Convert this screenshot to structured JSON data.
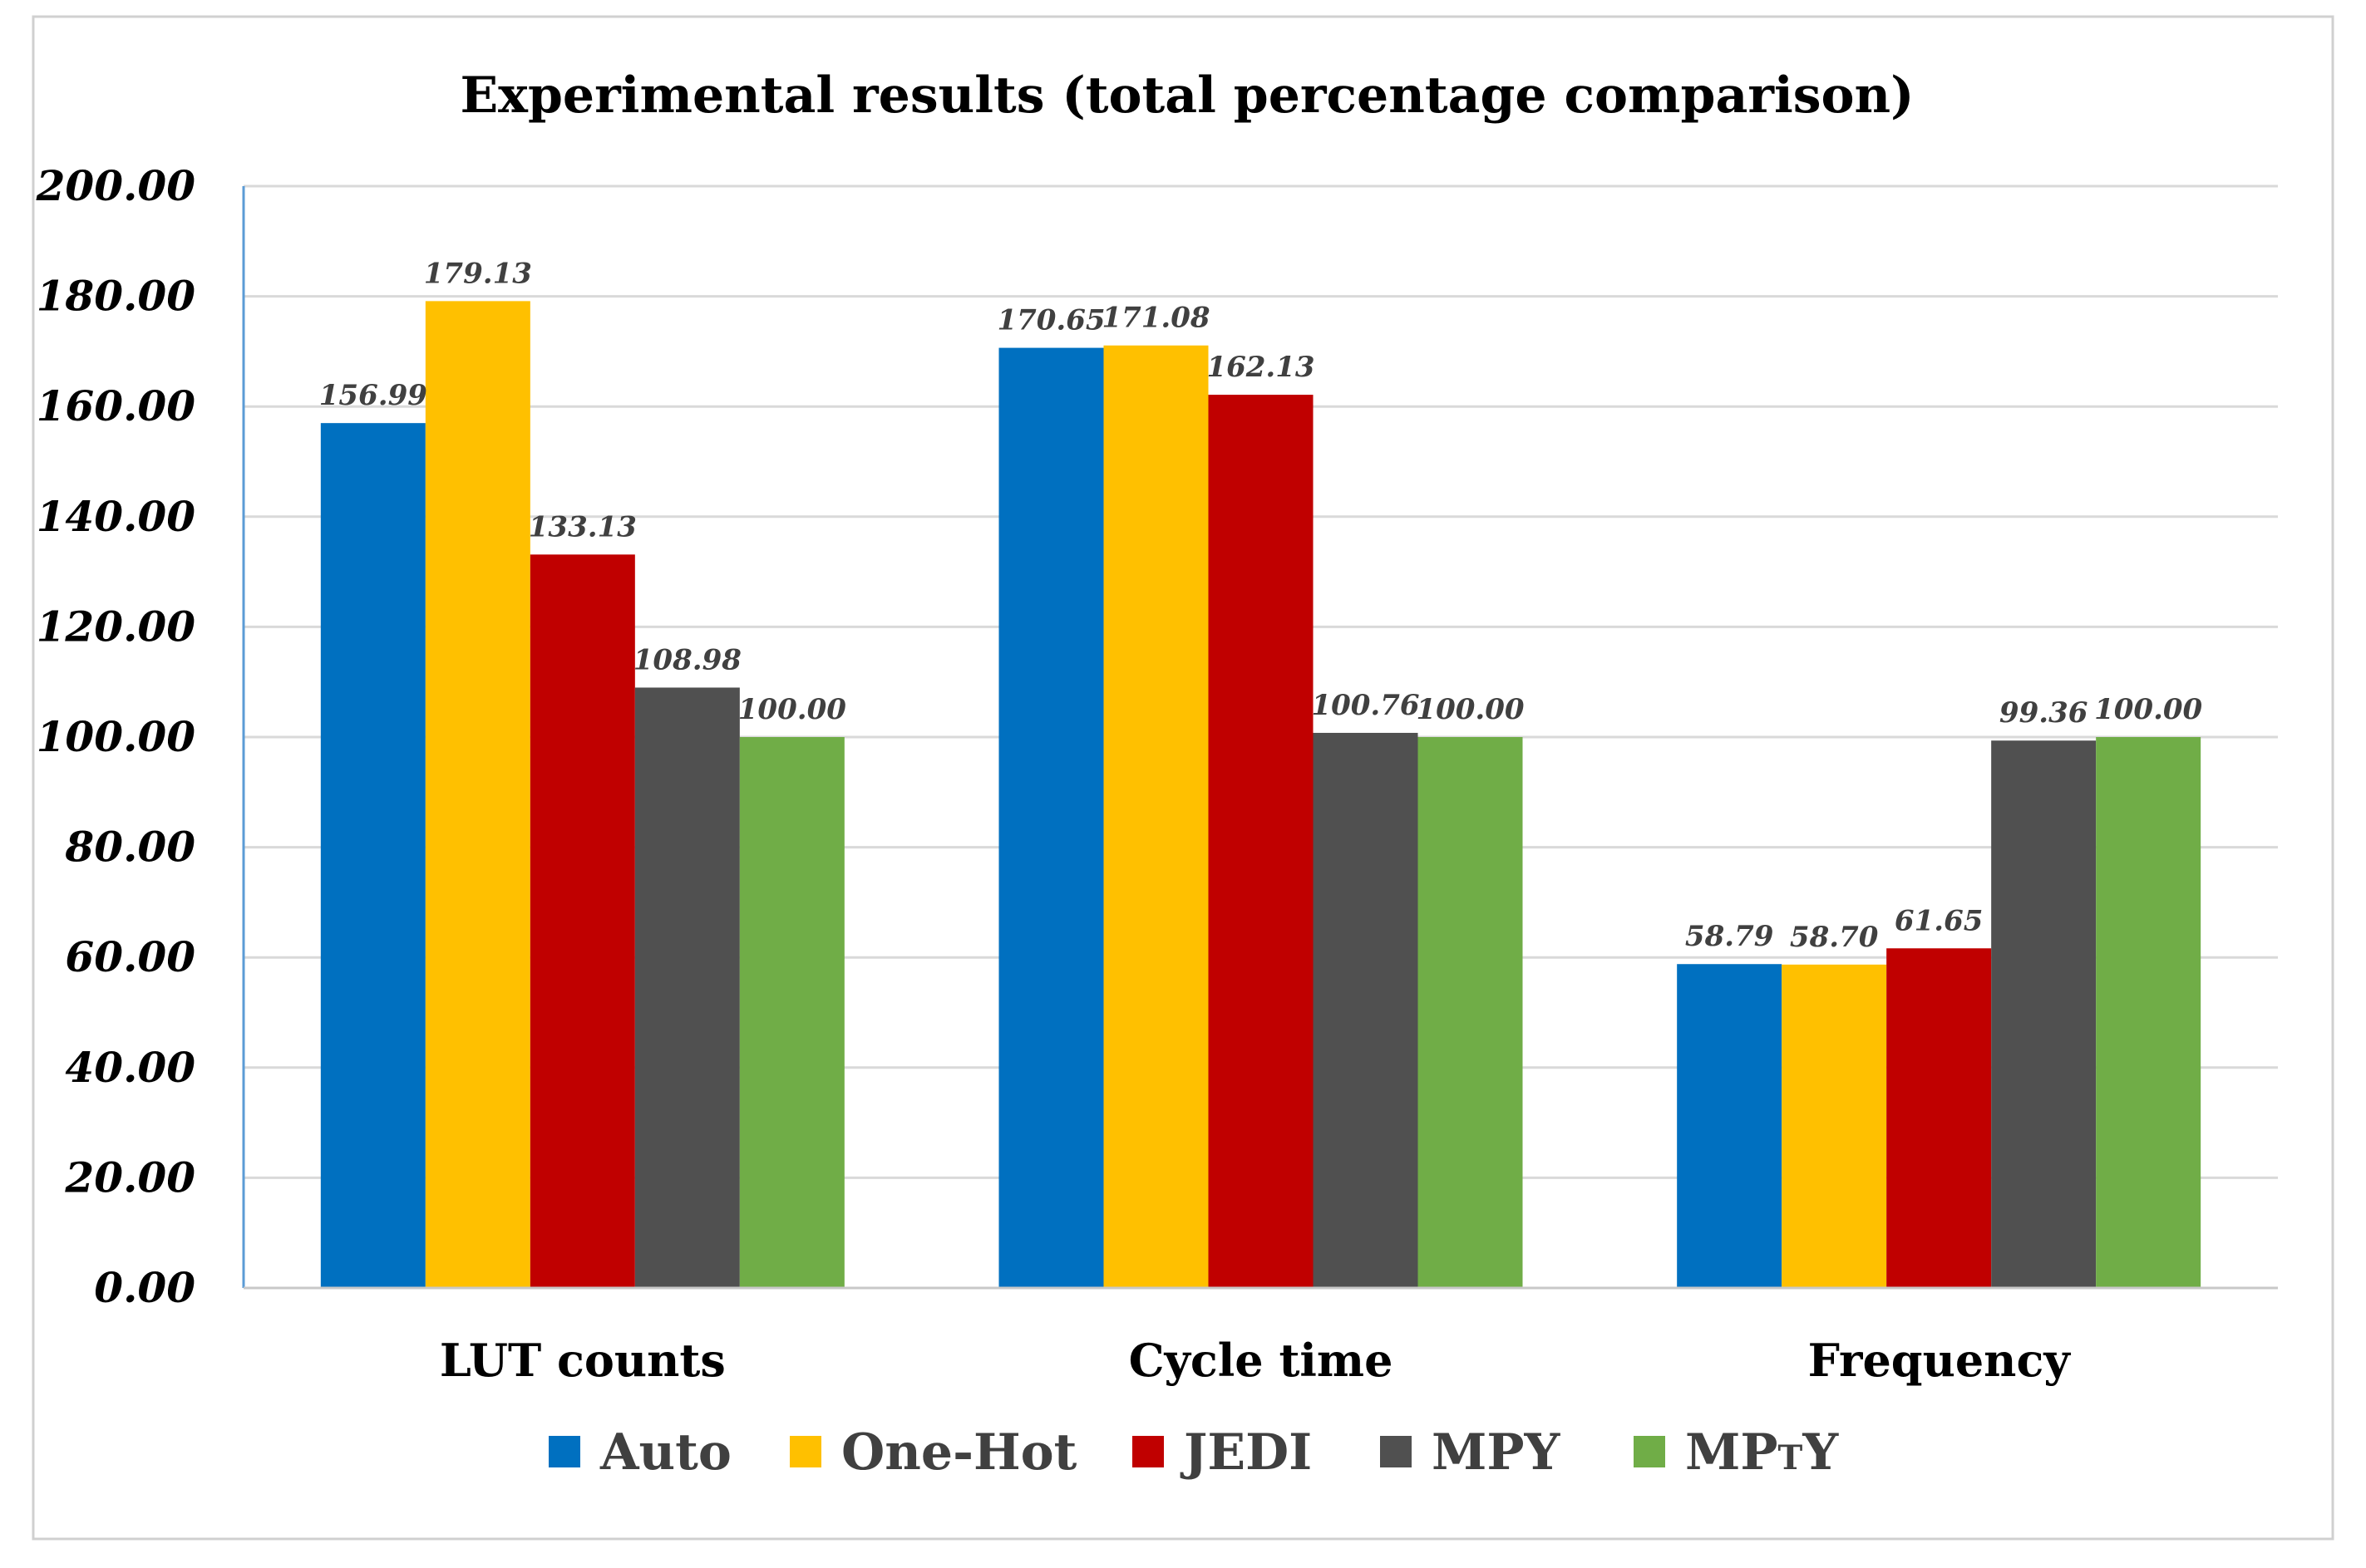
{
  "chart_data": {
    "type": "bar",
    "title": "Experimental results (total percentage comparison)",
    "xlabel": "",
    "ylabel": "",
    "ylim": [
      0,
      200
    ],
    "y_tick_step": 20,
    "y_tick_labels": [
      "0.00",
      "20.00",
      "40.00",
      "60.00",
      "80.00",
      "100.00",
      "120.00",
      "140.00",
      "160.00",
      "180.00",
      "200.00"
    ],
    "grid": true,
    "legend_position": "bottom",
    "categories": [
      "LUT counts",
      "Cycle time",
      "Frequency"
    ],
    "series": [
      {
        "name": "Auto",
        "color": "#0070C0",
        "values": [
          156.99,
          170.65,
          58.79
        ],
        "labels": [
          "156.99",
          "170.65",
          "58.79"
        ]
      },
      {
        "name": "One-Hot",
        "color": "#FFC000",
        "values": [
          179.13,
          171.08,
          58.7
        ],
        "labels": [
          "179.13",
          "171.08",
          "58.70"
        ]
      },
      {
        "name": "JEDI",
        "color": "#C00000",
        "values": [
          133.13,
          162.13,
          61.65
        ],
        "labels": [
          "133.13",
          "162.13",
          "61.65"
        ]
      },
      {
        "name": "MPY",
        "color": "#505050",
        "values": [
          108.98,
          100.76,
          99.36
        ],
        "labels": [
          "108.98",
          "100.76",
          "99.36"
        ]
      },
      {
        "name": "MPTY",
        "display_main": "MP",
        "display_sub": "T",
        "display_tail": "Y",
        "color": "#70AD47",
        "values": [
          100.0,
          100.0,
          100.0
        ],
        "labels": [
          "100.00",
          "100.00",
          "100.00"
        ]
      }
    ]
  }
}
